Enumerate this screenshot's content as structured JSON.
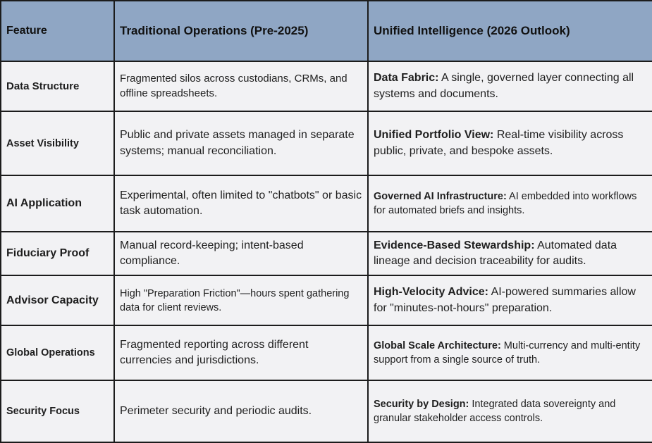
{
  "table": {
    "headers": [
      "Feature",
      "Traditional Operations (Pre-2025)",
      "Unified Intelligence (2026 Outlook)"
    ],
    "rows": [
      {
        "feature": "Data Structure",
        "traditional": "Fragmented silos across custodians, CRMs, and offline spreadsheets.",
        "unified_bold": "Data Fabric:",
        "unified_text": " A single, governed layer connecting all systems and documents."
      },
      {
        "feature": "Asset Visibility",
        "traditional": "Public and private assets managed in separate systems; manual reconciliation.",
        "unified_bold": "Unified Portfolio View:",
        "unified_text": " Real-time visibility across public, private, and bespoke assets."
      },
      {
        "feature": "AI Application",
        "traditional": "Experimental, often limited to \"chatbots\" or basic task automation.",
        "unified_bold": "Governed AI Infrastructure:",
        "unified_text": " AI embedded into workflows for automated briefs and insights."
      },
      {
        "feature": "Fiduciary Proof",
        "traditional": "Manual record-keeping; intent-based compliance.",
        "unified_bold": "Evidence-Based Stewardship:",
        "unified_text": " Automated data lineage and decision traceability for audits."
      },
      {
        "feature": "Advisor Capacity",
        "traditional": "High \"Preparation Friction\"—hours spent gathering data for client reviews.",
        "unified_bold": "High-Velocity Advice:",
        "unified_text": " AI-powered summaries allow for \"minutes-not-hours\" preparation."
      },
      {
        "feature": "Global Operations",
        "traditional": "Fragmented reporting across different currencies and jurisdictions.",
        "unified_bold": "Global Scale Architecture:",
        "unified_text": " Multi-currency and multi-entity support from a single source of truth."
      },
      {
        "feature": "Security Focus",
        "traditional": "Perimeter security and periodic audits.",
        "unified_bold": "Security by Design:",
        "unified_text": " Integrated data sovereignty and granular stakeholder access controls."
      }
    ]
  }
}
